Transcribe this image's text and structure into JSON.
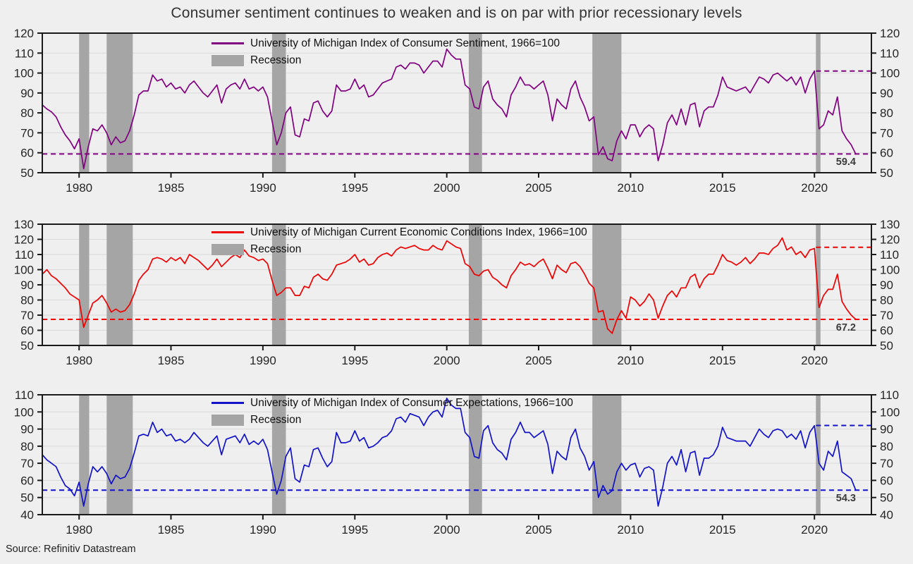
{
  "title": "Consumer sentiment continues to weaken and is on par with prior recessionary levels",
  "source": "Source: Refinitiv Datastream",
  "colors": {
    "background": "#efefef",
    "grid": "#d9d9d9",
    "axis": "#1a1a1a",
    "recession": "#a5a5a5",
    "text": "#262626"
  },
  "x_axis": {
    "min": 1978.0,
    "max": 2023.1,
    "ticks": [
      1980,
      1985,
      1990,
      1995,
      2000,
      2005,
      2010,
      2015,
      2020
    ]
  },
  "recessions": [
    [
      1980.0,
      1980.55
    ],
    [
      1981.5,
      1982.92
    ],
    [
      1990.5,
      1991.25
    ],
    [
      2001.2,
      2001.92
    ],
    [
      2007.92,
      2009.5
    ],
    [
      2020.08,
      2020.33
    ]
  ],
  "chart_data": [
    {
      "type": "line",
      "legend": "University of Michigan Index of Consumer Sentiment, 1966=100",
      "legend_recession": "Recession",
      "color": "#800080",
      "ylim": [
        50,
        120
      ],
      "ytick_step": 10,
      "ref_low": {
        "value": 59.4,
        "label": "59.4"
      },
      "ref_high": {
        "value": 101.0,
        "from": 2020.08
      },
      "series": {
        "start": 1978.0,
        "step": 0.25,
        "values": [
          84,
          82,
          80.5,
          78,
          73,
          69,
          66,
          62,
          67,
          52,
          63,
          72,
          71,
          74,
          70,
          64,
          68,
          65,
          66,
          71,
          79,
          89,
          91,
          91,
          99,
          96,
          97,
          93,
          95,
          92,
          93,
          90,
          94,
          96,
          93,
          90,
          88,
          91,
          94,
          85,
          92,
          94,
          95,
          92,
          97,
          92,
          93,
          91,
          93,
          88,
          76,
          64,
          70,
          80,
          83,
          69,
          68,
          77,
          76,
          85,
          86,
          81,
          78,
          81,
          94,
          91,
          91,
          92,
          97,
          92,
          94,
          88,
          89,
          92,
          95,
          96,
          97,
          103,
          104,
          102,
          105,
          105,
          104,
          100,
          103,
          106,
          106,
          103,
          112,
          109,
          107,
          107,
          94,
          92,
          83,
          82,
          93,
          96,
          87,
          84,
          82,
          78,
          89,
          93,
          98,
          94,
          94,
          92,
          94,
          96,
          89,
          76,
          87,
          84,
          82,
          92,
          96,
          88,
          83,
          76,
          78,
          59,
          63,
          57,
          56,
          66,
          71,
          67,
          74,
          74,
          68,
          72,
          74,
          72,
          56,
          64,
          75,
          79,
          74,
          82,
          74,
          84,
          85,
          73,
          81,
          83,
          83,
          89,
          98,
          93,
          92,
          91,
          92,
          93,
          90,
          94,
          98,
          97,
          95,
          99,
          100,
          98,
          96,
          98,
          94,
          98,
          90,
          97,
          101,
          72,
          74,
          81,
          79,
          88,
          71,
          67,
          64,
          59.4
        ]
      }
    },
    {
      "type": "line",
      "legend": "University of Michigan Current Economic Conditions Index, 1966=100",
      "legend_recession": "Recession",
      "color": "#ee0000",
      "ylim": [
        50,
        130
      ],
      "ytick_step": 10,
      "ref_low": {
        "value": 67.2,
        "label": "67.2"
      },
      "ref_high": {
        "value": 114.8,
        "from": 2020.08
      },
      "series": {
        "start": 1978.0,
        "step": 0.25,
        "values": [
          97,
          100,
          96,
          94,
          91,
          88,
          84,
          82,
          80,
          62,
          70,
          78,
          80,
          83,
          78,
          72,
          74,
          72,
          73,
          77,
          84,
          93,
          97,
          100,
          107,
          108,
          107,
          105,
          108,
          106,
          108,
          104,
          110,
          108,
          106,
          103,
          100,
          103,
          107,
          102,
          105,
          108,
          110,
          108,
          113,
          109,
          108,
          106,
          107,
          104,
          93,
          83,
          85,
          88,
          88,
          83,
          83,
          89,
          88,
          95,
          97,
          94,
          93,
          97,
          103,
          104,
          105,
          107,
          110,
          105,
          107,
          103,
          104,
          108,
          110,
          111,
          109,
          113,
          115,
          114,
          115,
          116,
          114,
          113,
          113,
          116,
          114,
          113,
          119,
          117,
          115,
          114,
          104,
          102,
          97,
          96,
          99,
          100,
          95,
          93,
          90,
          88,
          96,
          100,
          105,
          103,
          104,
          102,
          105,
          107,
          101,
          94,
          103,
          100,
          98,
          104,
          105,
          102,
          97,
          91,
          88,
          72,
          73,
          61,
          58,
          67,
          73,
          68,
          82,
          80,
          76,
          79,
          84,
          80,
          68,
          76,
          83,
          86,
          82,
          88,
          88,
          95,
          97,
          88,
          94,
          97,
          97,
          103,
          110,
          106,
          105,
          103,
          105,
          108,
          104,
          107,
          111,
          111,
          110,
          114,
          116,
          121,
          113,
          115,
          110,
          112,
          108,
          113,
          114,
          75,
          83,
          87,
          87,
          97,
          79,
          74,
          70,
          67.2
        ]
      }
    },
    {
      "type": "line",
      "legend": "University of Michigan Index of Consumer Expectations, 1966=100",
      "legend_recession": "Recession",
      "color": "#1212c9",
      "ylim": [
        40,
        110
      ],
      "ytick_step": 10,
      "ref_low": {
        "value": 54.3,
        "label": "54.3"
      },
      "ref_high": {
        "value": 92.1,
        "from": 2020.08
      },
      "series": {
        "start": 1978.0,
        "step": 0.25,
        "values": [
          75,
          72,
          70,
          68,
          62,
          57,
          55,
          51,
          59,
          45,
          58,
          68,
          65,
          68,
          64,
          58,
          63,
          61,
          62,
          67,
          76,
          86,
          87,
          86,
          94,
          88,
          90,
          86,
          87,
          83,
          84,
          82,
          84,
          88,
          85,
          82,
          80,
          83,
          86,
          75,
          84,
          85,
          86,
          82,
          87,
          81,
          83,
          81,
          84,
          78,
          65,
          52,
          60,
          74,
          79,
          61,
          59,
          69,
          68,
          78,
          79,
          73,
          68,
          71,
          88,
          82,
          82,
          83,
          89,
          83,
          85,
          79,
          80,
          82,
          85,
          86,
          89,
          96,
          97,
          94,
          99,
          98,
          97,
          92,
          97,
          100,
          101,
          97,
          108,
          104,
          102,
          102,
          88,
          85,
          74,
          73,
          89,
          92,
          82,
          78,
          76,
          72,
          84,
          88,
          94,
          88,
          88,
          85,
          87,
          89,
          81,
          64,
          77,
          74,
          72,
          85,
          90,
          79,
          74,
          66,
          71,
          50,
          57,
          52,
          54,
          65,
          70,
          66,
          69,
          70,
          62,
          67,
          68,
          66,
          45,
          56,
          70,
          74,
          69,
          78,
          65,
          76,
          77,
          63,
          73,
          73,
          75,
          80,
          91,
          85,
          84,
          83,
          83,
          83,
          80,
          85,
          90,
          87,
          85,
          89,
          90,
          89,
          85,
          87,
          84,
          89,
          79,
          88,
          92,
          70,
          66,
          77,
          74,
          83,
          65,
          63,
          61,
          54.3
        ]
      }
    }
  ]
}
